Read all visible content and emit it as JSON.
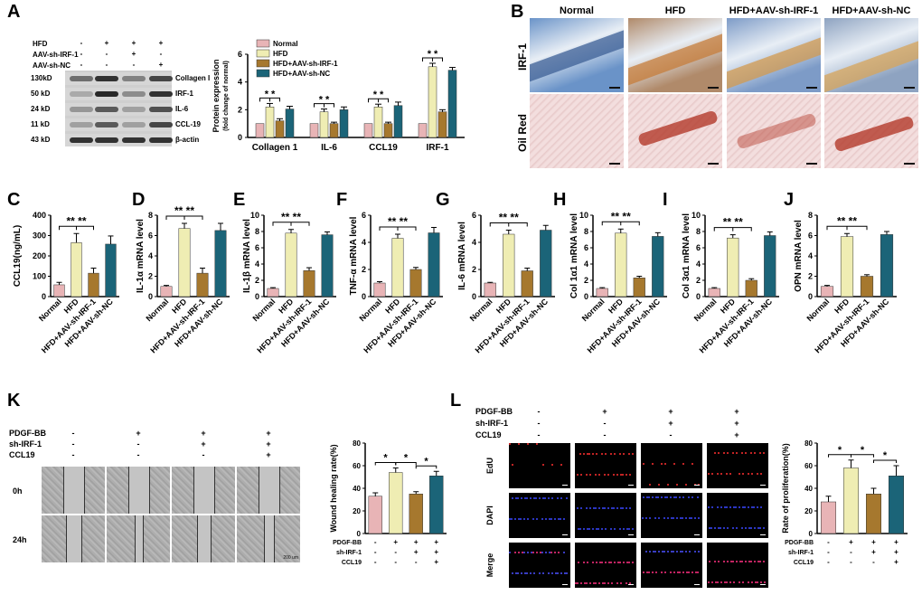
{
  "panel_labels": [
    "A",
    "B",
    "C",
    "D",
    "E",
    "F",
    "G",
    "H",
    "I",
    "J",
    "K",
    "L"
  ],
  "colors": {
    "normal": "#e8b4b6",
    "hfd": "#efedb3",
    "sh_irf1": "#a6782e",
    "sh_nc": "#1b6478"
  },
  "panelA_blot": {
    "conditions": [
      "HFD",
      "AAV-sh-IRF-1",
      "AAV-sh-NC"
    ],
    "signs": [
      [
        "-",
        "+",
        "+",
        "+"
      ],
      [
        "-",
        "-",
        "+",
        "-"
      ],
      [
        "-",
        "-",
        "-",
        "+"
      ]
    ],
    "bands": [
      {
        "kd": "130kD",
        "name": "Collagen I"
      },
      {
        "kd": "50 kD",
        "name": "IRF-1"
      },
      {
        "kd": "24 kD",
        "name": "IL-6"
      },
      {
        "kd": "11 kD",
        "name": "CCL-19"
      },
      {
        "kd": "43 kD",
        "name": "β-actin"
      }
    ]
  },
  "panelB": {
    "columns": [
      "Normal",
      "HFD",
      "HFD+AAV-sh-IRF-1",
      "HFD+AAV-sh-NC"
    ],
    "rows": [
      "IRF-1",
      "Oil Red"
    ]
  },
  "chart_data": [
    {
      "id": "A",
      "type": "bar",
      "ylabel": "Protein expression",
      "ylabel2": "(fold change of normal)",
      "categories": [
        "Collagen 1",
        "IL-6",
        "CCL19",
        "IRF-1"
      ],
      "ylim": [
        0,
        6
      ],
      "yticks": [
        0,
        2,
        4,
        6
      ],
      "legend": [
        "Normal",
        "HFD",
        "HFD+AAV-sh-IRF-1",
        "HFD+AAV-sh-NC"
      ],
      "series": [
        {
          "name": "Normal",
          "values": [
            1,
            1,
            1,
            1
          ],
          "err": [
            0,
            0,
            0,
            0
          ]
        },
        {
          "name": "HFD",
          "values": [
            2.2,
            1.85,
            2.2,
            5.1
          ],
          "err": [
            0.25,
            0.2,
            0.2,
            0.25
          ]
        },
        {
          "name": "HFD+AAV-sh-IRF-1",
          "values": [
            1.2,
            1.0,
            1.0,
            1.85
          ],
          "err": [
            0.15,
            0.1,
            0.1,
            0.15
          ]
        },
        {
          "name": "HFD+AAV-sh-NC",
          "values": [
            2.05,
            2.0,
            2.3,
            4.85
          ],
          "err": [
            0.2,
            0.2,
            0.25,
            0.2
          ]
        }
      ],
      "sig": [
        "* *",
        "* *",
        "* *",
        "* *"
      ]
    },
    {
      "id": "C",
      "type": "bar",
      "ylabel": "CCL19(ng/mL)",
      "ylim": [
        0,
        400
      ],
      "yticks": [
        0,
        100,
        200,
        300,
        400
      ],
      "categories": [
        "Normal",
        "HFD",
        "HFD+AAV-sh-IRF-1",
        "HFD+AAV-sh-NC"
      ],
      "values": [
        58,
        265,
        115,
        258
      ],
      "err": [
        12,
        45,
        25,
        40
      ],
      "sig": "** **"
    },
    {
      "id": "D",
      "type": "bar",
      "ylabel": "IL-1α mRNA level",
      "ylim": [
        0,
        8
      ],
      "yticks": [
        0,
        2,
        4,
        6,
        8
      ],
      "categories": [
        "Normal",
        "HFD",
        "HFD+AAV-sh-IRF-1",
        "HFD+AAV-sh-NC"
      ],
      "values": [
        1.0,
        6.7,
        2.3,
        6.5
      ],
      "err": [
        0.1,
        0.5,
        0.5,
        0.7
      ],
      "sig": "** **"
    },
    {
      "id": "E",
      "type": "bar",
      "ylabel": "IL-1β mRNA level",
      "ylim": [
        0,
        10
      ],
      "yticks": [
        0,
        2,
        4,
        6,
        8,
        10
      ],
      "categories": [
        "Normal",
        "HFD",
        "HFD+AAV-sh-IRF-1",
        "HFD+AAV-sh-NC"
      ],
      "values": [
        1.0,
        7.8,
        3.2,
        7.6
      ],
      "err": [
        0.1,
        0.45,
        0.35,
        0.35
      ],
      "sig": "** **"
    },
    {
      "id": "F",
      "type": "bar",
      "ylabel": "TNF-α mRNA level",
      "ylim": [
        0,
        6
      ],
      "yticks": [
        0,
        2,
        4,
        6
      ],
      "categories": [
        "Normal",
        "HFD",
        "HFD+AAV-sh-IRF-1",
        "HFD+AAV-sh-NC"
      ],
      "values": [
        1.0,
        4.3,
        2.0,
        4.7
      ],
      "err": [
        0.1,
        0.3,
        0.15,
        0.4
      ],
      "sig": "** **"
    },
    {
      "id": "G",
      "type": "bar",
      "ylabel": "IL-6 mRNA level",
      "ylim": [
        0,
        6
      ],
      "yticks": [
        0,
        2,
        4,
        6
      ],
      "categories": [
        "Normal",
        "HFD",
        "HFD+AAV-sh-IRF-1",
        "HFD+AAV-sh-NC"
      ],
      "values": [
        1.0,
        4.6,
        1.9,
        4.9
      ],
      "err": [
        0.05,
        0.3,
        0.2,
        0.35
      ],
      "sig": "** **"
    },
    {
      "id": "H",
      "type": "bar",
      "ylabel": "Col 1α1 mRNA level",
      "ylim": [
        0,
        10
      ],
      "yticks": [
        0,
        2,
        4,
        6,
        8,
        10
      ],
      "categories": [
        "Normal",
        "HFD",
        "HFD+AAV-sh-IRF-1",
        "HFD+AAV-sh-NC"
      ],
      "values": [
        1.0,
        7.8,
        2.3,
        7.4
      ],
      "err": [
        0.1,
        0.5,
        0.2,
        0.45
      ],
      "sig": "** **"
    },
    {
      "id": "I",
      "type": "bar",
      "ylabel": "Col 3α1 mRNA level",
      "ylim": [
        0,
        10
      ],
      "yticks": [
        0,
        2,
        4,
        6,
        8,
        10
      ],
      "categories": [
        "Normal",
        "HFD",
        "HFD+AAV-sh-IRF-1",
        "HFD+AAV-sh-NC"
      ],
      "values": [
        1.0,
        7.2,
        2.0,
        7.5
      ],
      "err": [
        0.1,
        0.4,
        0.2,
        0.45
      ],
      "sig": "** **"
    },
    {
      "id": "J",
      "type": "bar",
      "ylabel": "OPN mRNA level",
      "ylim": [
        0,
        8
      ],
      "yticks": [
        0,
        2,
        4,
        6,
        8
      ],
      "categories": [
        "Normal",
        "HFD",
        "HFD+AAV-sh-IRF-1",
        "HFD+AAV-sh-NC"
      ],
      "values": [
        1.0,
        5.9,
        2.0,
        6.1
      ],
      "err": [
        0.1,
        0.3,
        0.15,
        0.3
      ],
      "sig": "** **"
    },
    {
      "id": "K",
      "type": "bar",
      "ylabel": "Wound healing rate(%)",
      "ylim": [
        0,
        80
      ],
      "yticks": [
        0,
        20,
        40,
        60,
        80
      ],
      "values": [
        33,
        54,
        35,
        51
      ],
      "err": [
        3,
        4,
        2,
        4
      ],
      "sig": [
        "*",
        "*",
        "*"
      ],
      "row_labels": [
        "PDGF-BB",
        "sh-IRF-1",
        "CCL19"
      ],
      "signs": [
        [
          "-",
          "+",
          "+",
          "+"
        ],
        [
          "-",
          "-",
          "+",
          "+"
        ],
        [
          "-",
          "-",
          "-",
          "+"
        ]
      ]
    },
    {
      "id": "L",
      "type": "bar",
      "ylabel": "Rate of proliferation(%)",
      "ylim": [
        0,
        80
      ],
      "yticks": [
        0,
        20,
        40,
        60,
        80
      ],
      "values": [
        28,
        58,
        35,
        51
      ],
      "err": [
        5,
        7,
        5,
        9
      ],
      "sig": [
        "*",
        "*",
        "*"
      ],
      "row_labels": [
        "PDGF-BB",
        "sh-IRF-1",
        "CCL19"
      ],
      "signs": [
        [
          "-",
          "+",
          "+",
          "+"
        ],
        [
          "-",
          "-",
          "+",
          "+"
        ],
        [
          "-",
          "-",
          "-",
          "+"
        ]
      ]
    }
  ],
  "panelK": {
    "row_labels": [
      "PDGF-BB",
      "sh-IRF-1",
      "CCL19"
    ],
    "signs": [
      [
        "-",
        "+",
        "+",
        "+"
      ],
      [
        "-",
        "-",
        "+",
        "+"
      ],
      [
        "-",
        "-",
        "-",
        "+"
      ]
    ],
    "times": [
      "0h",
      "24h"
    ],
    "scale": "200 um"
  },
  "panelL": {
    "row_labels": [
      "PDGF-BB",
      "sh-IRF-1",
      "CCL19"
    ],
    "signs": [
      [
        "-",
        "+",
        "+",
        "+"
      ],
      [
        "-",
        "-",
        "+",
        "+"
      ],
      [
        "-",
        "-",
        "-",
        "+"
      ]
    ],
    "channels": [
      "EdU",
      "DAPI",
      "Merge"
    ]
  }
}
